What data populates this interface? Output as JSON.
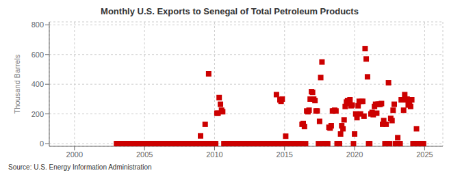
{
  "chart_data": {
    "type": "scatter",
    "title": "Monthly U.S. Exports to Senegal of Total Petroleum Products",
    "ylabel": "Thousand Barrels",
    "annotations": [
      "Source: U.S. Energy Information Administration"
    ],
    "color": "#cc0000",
    "marker": "square",
    "grid": true,
    "xlim": [
      1998.2,
      2026.3
    ],
    "xticks": [
      2000,
      2005,
      2010,
      2015,
      2020,
      2025
    ],
    "ylim": [
      -18,
      820
    ],
    "yticks": [
      0,
      200,
      400,
      600,
      800
    ],
    "x": [
      2003.0,
      2003.08,
      2003.17,
      2003.25,
      2003.33,
      2003.42,
      2003.5,
      2003.58,
      2003.67,
      2003.75,
      2003.83,
      2003.92,
      2004.0,
      2004.08,
      2004.17,
      2004.25,
      2004.33,
      2004.42,
      2004.5,
      2004.58,
      2004.67,
      2004.75,
      2004.83,
      2004.92,
      2005.0,
      2005.08,
      2005.17,
      2005.25,
      2005.33,
      2005.42,
      2005.5,
      2005.58,
      2005.67,
      2005.75,
      2005.83,
      2005.92,
      2006.0,
      2006.08,
      2006.17,
      2006.25,
      2006.33,
      2006.42,
      2006.5,
      2006.58,
      2006.67,
      2006.75,
      2006.83,
      2006.92,
      2007.0,
      2007.08,
      2007.17,
      2007.25,
      2007.33,
      2007.42,
      2007.5,
      2007.58,
      2007.67,
      2007.75,
      2007.83,
      2007.92,
      2008.0,
      2008.08,
      2008.17,
      2008.25,
      2008.33,
      2008.42,
      2008.5,
      2008.58,
      2008.67,
      2008.75,
      2008.83,
      2008.92,
      2009.0,
      2009.08,
      2009.17,
      2009.25,
      2009.33,
      2009.42,
      2009.5,
      2009.58,
      2009.67,
      2009.75,
      2009.83,
      2009.92,
      2010.0,
      2010.08,
      2010.17,
      2010.25,
      2010.33,
      2010.42,
      2010.5,
      2010.58,
      2010.67,
      2010.75,
      2010.83,
      2010.92,
      2011.0,
      2011.08,
      2011.17,
      2011.25,
      2011.33,
      2011.42,
      2011.5,
      2011.58,
      2011.67,
      2011.75,
      2011.83,
      2011.92,
      2012.0,
      2012.08,
      2012.17,
      2012.25,
      2012.33,
      2012.42,
      2012.5,
      2012.58,
      2012.67,
      2012.75,
      2012.83,
      2012.92,
      2013.0,
      2013.08,
      2013.17,
      2013.25,
      2013.33,
      2013.42,
      2013.5,
      2013.58,
      2013.67,
      2013.75,
      2013.83,
      2013.92,
      2014.0,
      2014.08,
      2014.17,
      2014.25,
      2014.33,
      2014.42,
      2014.5,
      2014.58,
      2014.67,
      2014.75,
      2014.83,
      2014.92,
      2015.0,
      2015.08,
      2015.17,
      2015.25,
      2015.33,
      2015.42,
      2015.5,
      2015.58,
      2015.67,
      2015.75,
      2015.83,
      2015.92,
      2016.0,
      2016.08,
      2016.17,
      2016.25,
      2016.33,
      2016.42,
      2016.5,
      2016.58,
      2016.67,
      2016.75,
      2016.83,
      2016.92,
      2017.0,
      2017.08,
      2017.17,
      2017.25,
      2017.33,
      2017.42,
      2017.5,
      2017.58,
      2017.67,
      2017.75,
      2017.83,
      2017.92,
      2018.0,
      2018.08,
      2018.17,
      2018.25,
      2018.33,
      2018.42,
      2018.5,
      2018.58,
      2018.67,
      2018.75,
      2018.83,
      2018.92,
      2019.0,
      2019.08,
      2019.17,
      2019.25,
      2019.33,
      2019.42,
      2019.5,
      2019.58,
      2019.67,
      2019.75,
      2019.83,
      2019.92,
      2020.0,
      2020.08,
      2020.17,
      2020.25,
      2020.33,
      2020.42,
      2020.5,
      2020.58,
      2020.67,
      2020.75,
      2020.83,
      2020.92,
      2021.0,
      2021.08,
      2021.17,
      2021.25,
      2021.33,
      2021.42,
      2021.5,
      2021.58,
      2021.67,
      2021.75,
      2021.83,
      2021.92,
      2022.0,
      2022.08,
      2022.17,
      2022.25,
      2022.33,
      2022.42,
      2022.5,
      2022.58,
      2022.67,
      2022.75,
      2022.83,
      2022.92,
      2023.0,
      2023.08,
      2023.17,
      2023.25,
      2023.33,
      2023.42,
      2023.5,
      2023.58,
      2023.67,
      2023.75,
      2023.83,
      2023.92,
      2024.0,
      2024.08,
      2024.17,
      2024.25,
      2024.33,
      2024.42,
      2024.5,
      2024.58,
      2024.67,
      2024.75,
      2024.83,
      2024.92
    ],
    "values": [
      0,
      0,
      0,
      0,
      0,
      0,
      0,
      0,
      0,
      0,
      0,
      0,
      0,
      0,
      0,
      0,
      0,
      0,
      0,
      0,
      0,
      0,
      0,
      0,
      0,
      0,
      0,
      0,
      0,
      0,
      0,
      0,
      0,
      0,
      0,
      0,
      0,
      0,
      0,
      0,
      0,
      0,
      0,
      0,
      0,
      0,
      0,
      0,
      0,
      0,
      0,
      0,
      0,
      0,
      0,
      0,
      0,
      0,
      0,
      0,
      0,
      0,
      0,
      0,
      0,
      0,
      0,
      0,
      0,
      0,
      0,
      0,
      52,
      0,
      0,
      0,
      130,
      0,
      0,
      470,
      0,
      0,
      0,
      0,
      0,
      0,
      205,
      205,
      310,
      265,
      225,
      215,
      0,
      0,
      0,
      0,
      0,
      0,
      0,
      0,
      0,
      0,
      0,
      0,
      0,
      0,
      0,
      0,
      0,
      0,
      0,
      0,
      0,
      0,
      0,
      0,
      0,
      0,
      0,
      0,
      0,
      0,
      0,
      0,
      0,
      0,
      0,
      0,
      0,
      0,
      0,
      0,
      0,
      0,
      0,
      0,
      0,
      330,
      0,
      0,
      295,
      285,
      300,
      0,
      0,
      50,
      0,
      0,
      0,
      0,
      0,
      0,
      0,
      0,
      0,
      0,
      0,
      0,
      0,
      130,
      135,
      115,
      0,
      220,
      215,
      225,
      300,
      350,
      345,
      300,
      290,
      220,
      220,
      0,
      150,
      445,
      550,
      0,
      0,
      0,
      0,
      0,
      110,
      105,
      120,
      220,
      220,
      225,
      220,
      0,
      0,
      0,
      65,
      120,
      100,
      160,
      250,
      280,
      290,
      270,
      295,
      255,
      260,
      0,
      65,
      200,
      175,
      255,
      285,
      200,
      285,
      285,
      185,
      640,
      570,
      450,
      0,
      0,
      200,
      210,
      195,
      250,
      265,
      205,
      265,
      265,
      265,
      270,
      130,
      155,
      0,
      130,
      0,
      410,
      0,
      170,
      155,
      225,
      265,
      0,
      0,
      40,
      0,
      0,
      295,
      295,
      225,
      330,
      295,
      300,
      260,
      270,
      250,
      295,
      0,
      0,
      0,
      100,
      0,
      0,
      0,
      0,
      0,
      0
    ]
  }
}
